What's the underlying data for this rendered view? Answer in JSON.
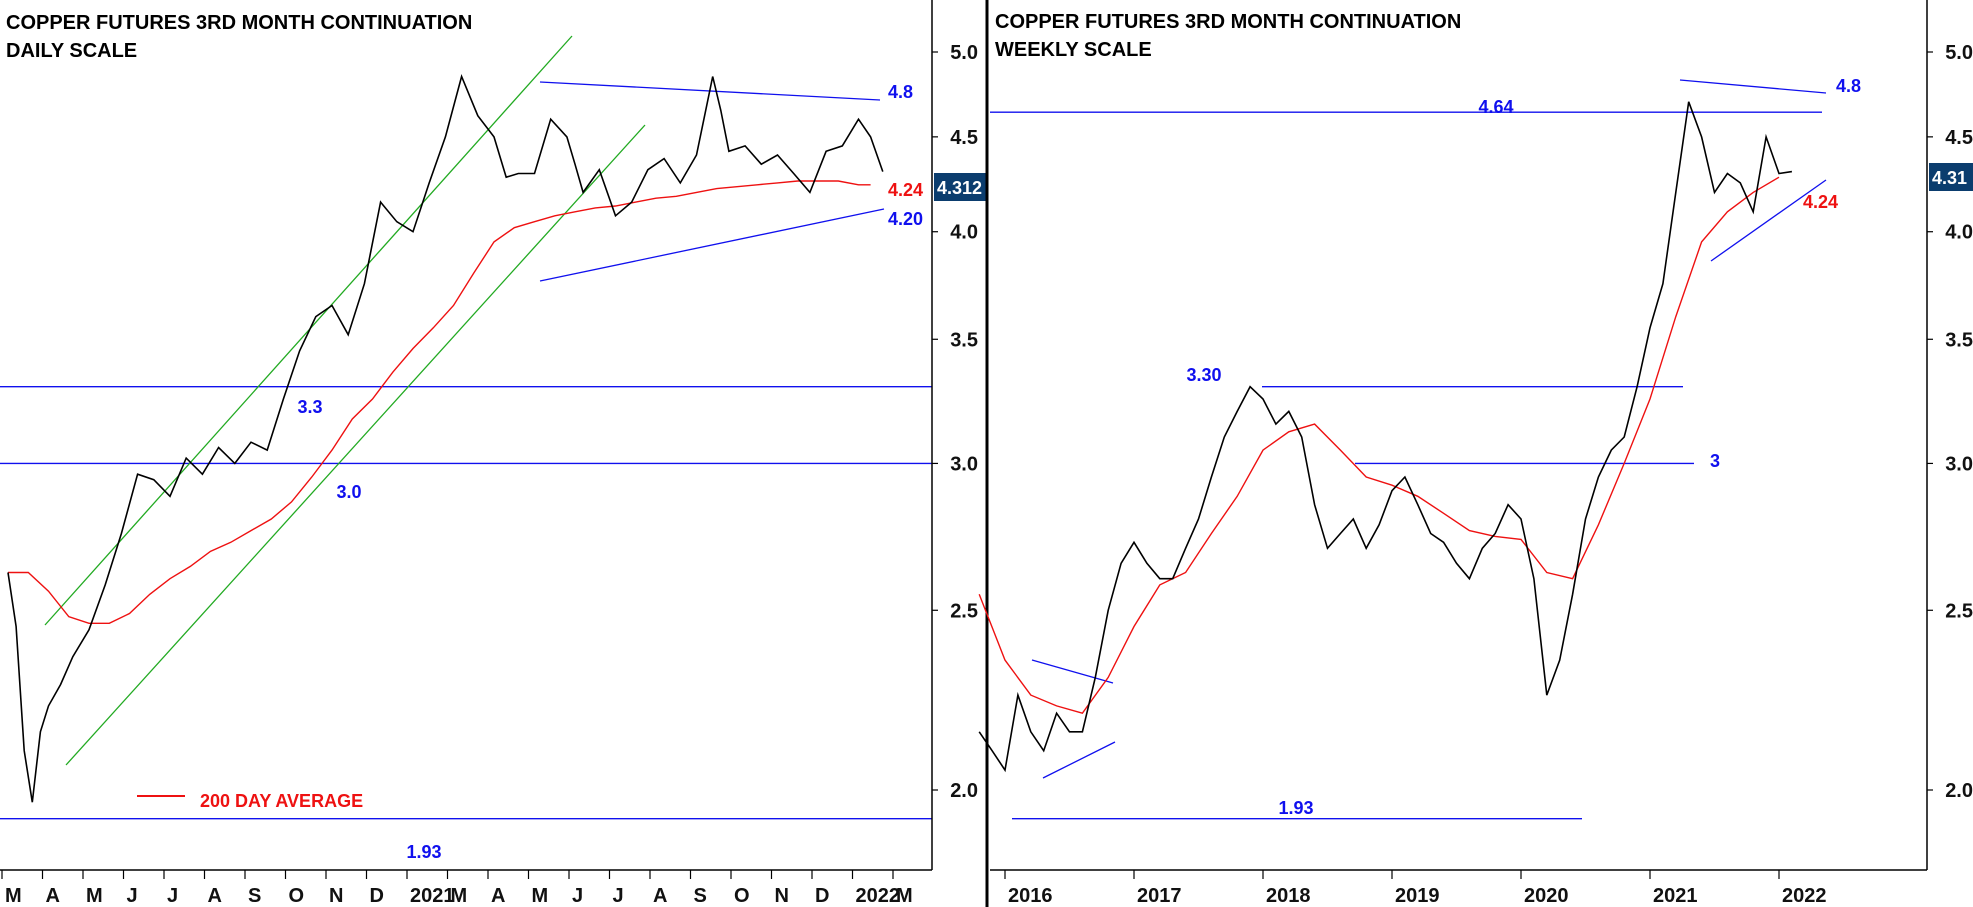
{
  "colors": {
    "level_line": "#1010ee",
    "channel": "#22aa22",
    "average": "#ee1111",
    "price": "#000000",
    "badge": "#0b3d6e"
  },
  "chart_data": [
    {
      "type": "line",
      "title": "COPPER FUTURES 3RD MONTH CONTINUATION",
      "subtitle": "DAILY SCALE",
      "scale": "log",
      "ylim": [
        1.85,
        5.4
      ],
      "y_ticks": [
        "5.0",
        "4.5",
        "4.0",
        "3.5",
        "3.0",
        "2.5",
        "2.0"
      ],
      "x_ticks": [
        "M",
        "A",
        "M",
        "J",
        "J",
        "A",
        "S",
        "O",
        "N",
        "D",
        "2021",
        "M",
        "A",
        "M",
        "J",
        "J",
        "A",
        "S",
        "O",
        "N",
        "D",
        "2022",
        "M"
      ],
      "last_price": "4.312",
      "legend": "200 DAY AVERAGE",
      "levels": [
        {
          "value": 3.3,
          "label": "3.3"
        },
        {
          "value": 3.0,
          "label": "3.0"
        },
        {
          "value": 1.93,
          "label": "1.93"
        }
      ],
      "annotations": [
        {
          "label": "4.8",
          "color": "blue"
        },
        {
          "label": "4.24",
          "color": "red"
        },
        {
          "label": "4.20",
          "color": "blue"
        }
      ],
      "series": [
        {
          "role": "price",
          "x": [
            0,
            0.2,
            0.4,
            0.6,
            0.8,
            1,
            1.3,
            1.6,
            2,
            2.4,
            2.8,
            3.2,
            3.6,
            4,
            4.4,
            4.8,
            5.2,
            5.6,
            6,
            6.4,
            6.8,
            7.2,
            7.6,
            8,
            8.4,
            8.8,
            9.2,
            9.6,
            10,
            10.4,
            10.8,
            11.2,
            11.6,
            12,
            12.3,
            12.6,
            13,
            13.4,
            13.8,
            14,
            14.2,
            14.6,
            15,
            15.4,
            15.8,
            16.2,
            16.6,
            17,
            17.4,
            17.6,
            17.8,
            18.2,
            18.6,
            19,
            19.4,
            19.8,
            20.2,
            20.6,
            21,
            21.3,
            21.6
          ],
          "y": [
            2.62,
            2.45,
            2.1,
            1.97,
            2.15,
            2.22,
            2.28,
            2.36,
            2.44,
            2.58,
            2.75,
            2.96,
            2.94,
            2.88,
            3.02,
            2.96,
            3.06,
            3.0,
            3.08,
            3.05,
            3.25,
            3.45,
            3.6,
            3.65,
            3.52,
            3.75,
            4.15,
            4.05,
            4.0,
            4.25,
            4.5,
            4.85,
            4.62,
            4.5,
            4.28,
            4.3,
            4.3,
            4.6,
            4.5,
            4.35,
            4.2,
            4.32,
            4.08,
            4.15,
            4.32,
            4.38,
            4.25,
            4.4,
            4.85,
            4.65,
            4.42,
            4.45,
            4.35,
            4.4,
            4.3,
            4.2,
            4.42,
            4.45,
            4.6,
            4.5,
            4.31
          ]
        },
        {
          "role": "200 DAY AVERAGE",
          "x": [
            0,
            0.5,
            1,
            1.5,
            2,
            2.5,
            3,
            3.5,
            4,
            4.5,
            5,
            5.5,
            6,
            6.5,
            7,
            7.5,
            8,
            8.5,
            9,
            9.5,
            10,
            10.5,
            11,
            11.5,
            12,
            12.5,
            13,
            13.5,
            14,
            14.5,
            15,
            15.5,
            16,
            16.5,
            17,
            17.5,
            18,
            18.5,
            19,
            19.5,
            20,
            20.5,
            21,
            21.3
          ],
          "y": [
            2.62,
            2.62,
            2.56,
            2.48,
            2.46,
            2.46,
            2.49,
            2.55,
            2.6,
            2.64,
            2.69,
            2.72,
            2.76,
            2.8,
            2.86,
            2.95,
            3.05,
            3.17,
            3.25,
            3.36,
            3.46,
            3.55,
            3.65,
            3.8,
            3.95,
            4.02,
            4.05,
            4.08,
            4.1,
            4.12,
            4.13,
            4.15,
            4.17,
            4.18,
            4.2,
            4.22,
            4.23,
            4.24,
            4.25,
            4.26,
            4.26,
            4.26,
            4.24,
            4.24
          ]
        }
      ]
    },
    {
      "type": "line",
      "title": "COPPER FUTURES 3RD MONTH CONTINUATION",
      "subtitle": "WEEKLY SCALE",
      "scale": "log",
      "ylim": [
        1.85,
        5.4
      ],
      "y_ticks": [
        "5.0",
        "4.5",
        "4.0",
        "3.5",
        "3.0",
        "2.5",
        "2.0"
      ],
      "x_ticks": [
        "2016",
        "2017",
        "2018",
        "2019",
        "2020",
        "2021",
        "2022"
      ],
      "last_price": "4.31",
      "levels": [
        {
          "value": 4.64,
          "label": "4.64"
        },
        {
          "value": 3.3,
          "label": "3.30"
        },
        {
          "value": 3.0,
          "label": "3"
        },
        {
          "value": 1.93,
          "label": "1.93"
        }
      ],
      "annotations": [
        {
          "label": "4.8",
          "color": "blue"
        },
        {
          "label": "4.24",
          "color": "red"
        }
      ],
      "series": [
        {
          "role": "price",
          "x": [
            2015.8,
            2015.9,
            2016.0,
            2016.1,
            2016.2,
            2016.3,
            2016.4,
            2016.5,
            2016.6,
            2016.7,
            2016.8,
            2016.9,
            2017.0,
            2017.1,
            2017.2,
            2017.3,
            2017.4,
            2017.5,
            2017.6,
            2017.7,
            2017.8,
            2017.9,
            2018.0,
            2018.1,
            2018.2,
            2018.3,
            2018.4,
            2018.5,
            2018.6,
            2018.7,
            2018.8,
            2018.9,
            2019.0,
            2019.1,
            2019.2,
            2019.3,
            2019.4,
            2019.5,
            2019.6,
            2019.7,
            2019.8,
            2019.9,
            2020.0,
            2020.1,
            2020.2,
            2020.3,
            2020.4,
            2020.5,
            2020.6,
            2020.7,
            2020.8,
            2020.9,
            2021.0,
            2021.1,
            2021.2,
            2021.3,
            2021.4,
            2021.5,
            2021.6,
            2021.7,
            2021.8,
            2021.9,
            2022.0,
            2022.1
          ],
          "y": [
            2.15,
            2.1,
            2.05,
            2.25,
            2.15,
            2.1,
            2.2,
            2.15,
            2.15,
            2.3,
            2.5,
            2.65,
            2.72,
            2.65,
            2.6,
            2.6,
            2.7,
            2.8,
            2.95,
            3.1,
            3.2,
            3.3,
            3.25,
            3.15,
            3.2,
            3.1,
            2.85,
            2.7,
            2.75,
            2.8,
            2.7,
            2.78,
            2.9,
            2.95,
            2.85,
            2.75,
            2.72,
            2.65,
            2.6,
            2.7,
            2.75,
            2.85,
            2.8,
            2.6,
            2.25,
            2.35,
            2.55,
            2.8,
            2.95,
            3.05,
            3.1,
            3.3,
            3.55,
            3.75,
            4.2,
            4.7,
            4.5,
            4.2,
            4.3,
            4.25,
            4.1,
            4.5,
            4.3,
            4.31
          ]
        },
        {
          "role": "average",
          "x": [
            2015.8,
            2016.0,
            2016.2,
            2016.4,
            2016.6,
            2016.8,
            2017.0,
            2017.2,
            2017.4,
            2017.6,
            2017.8,
            2018.0,
            2018.2,
            2018.4,
            2018.6,
            2018.8,
            2019.0,
            2019.2,
            2019.4,
            2019.6,
            2019.8,
            2020.0,
            2020.2,
            2020.4,
            2020.6,
            2020.8,
            2021.0,
            2021.2,
            2021.4,
            2021.6,
            2021.8,
            2022.0
          ],
          "y": [
            2.55,
            2.35,
            2.25,
            2.22,
            2.2,
            2.3,
            2.45,
            2.58,
            2.62,
            2.75,
            2.88,
            3.05,
            3.12,
            3.15,
            3.05,
            2.95,
            2.92,
            2.88,
            2.82,
            2.76,
            2.74,
            2.73,
            2.62,
            2.6,
            2.78,
            3.0,
            3.25,
            3.6,
            3.95,
            4.1,
            4.2,
            4.28
          ]
        }
      ]
    }
  ]
}
